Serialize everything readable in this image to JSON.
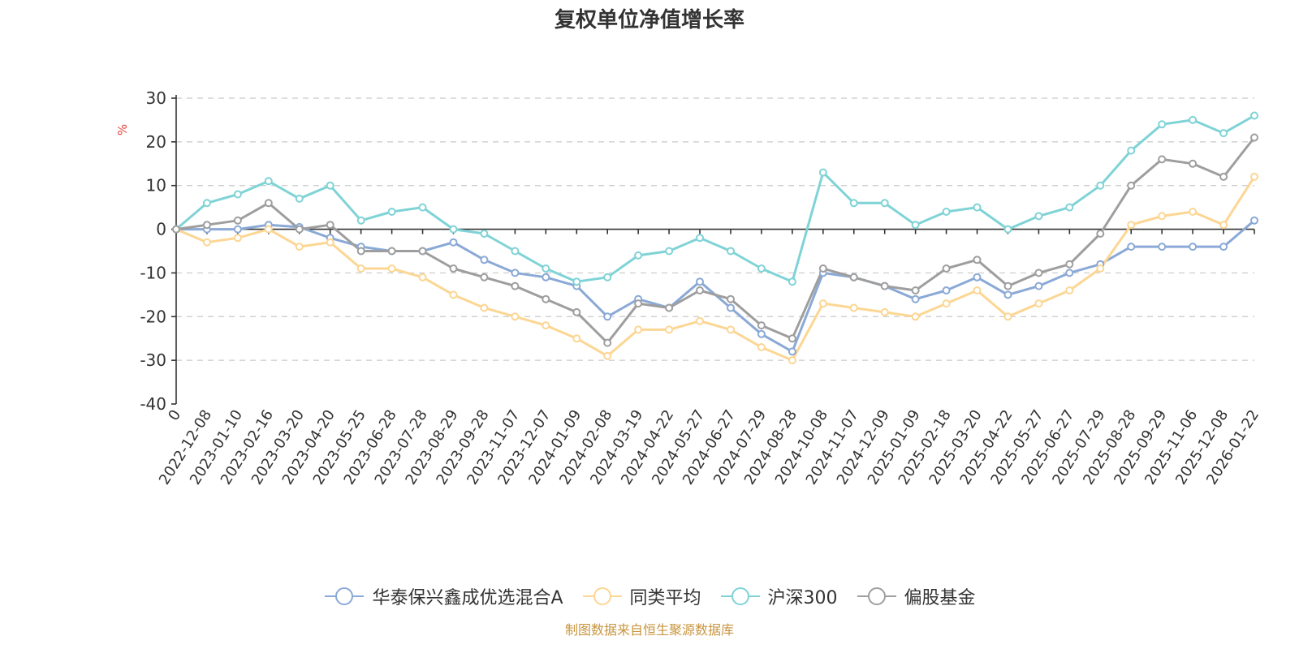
{
  "chart_data": {
    "type": "line",
    "title": "复权单位净值增长率",
    "ylabel": "%",
    "xlabel": "",
    "ylim": [
      -40,
      30
    ],
    "yticks": [
      30,
      20,
      10,
      0,
      -10,
      -20,
      -30,
      -40
    ],
    "grid": true,
    "legend_position": "bottom",
    "categories": [
      "0",
      "2022-12-08",
      "2023-01-10",
      "2023-02-16",
      "2023-03-20",
      "2023-04-20",
      "2023-05-25",
      "2023-06-28",
      "2023-07-28",
      "2023-08-29",
      "2023-09-28",
      "2023-11-07",
      "2023-12-07",
      "2024-01-09",
      "2024-02-08",
      "2024-03-19",
      "2024-04-22",
      "2024-05-27",
      "2024-06-27",
      "2024-07-29",
      "2024-08-28",
      "2024-10-08",
      "2024-11-07",
      "2024-12-09",
      "2025-01-09",
      "2025-02-18",
      "2025-03-20",
      "2025-04-22",
      "2025-05-27",
      "2025-06-27",
      "2025-07-29",
      "2025-08-28",
      "2025-09-29",
      "2025-11-06",
      "2025-12-08",
      "2026-01-22"
    ],
    "series": [
      {
        "name": "华泰保兴鑫成优选混合A",
        "color": "#8aa9d6",
        "values": [
          0,
          0,
          0,
          1,
          0.5,
          -2,
          -4,
          -5,
          -5,
          -3,
          -7,
          -10,
          -11,
          -13,
          -20,
          -16,
          -18,
          -12,
          -18,
          -24,
          -28,
          -10,
          -11,
          -13,
          -16,
          -14,
          -11,
          -15,
          -13,
          -10,
          -8,
          -4,
          -4,
          -4,
          -4,
          2
        ]
      },
      {
        "name": "同类平均",
        "color": "#fcd693",
        "values": [
          0,
          -3,
          -2,
          0,
          -4,
          -3,
          -9,
          -9,
          -11,
          -15,
          -18,
          -20,
          -22,
          -25,
          -29,
          -23,
          -23,
          -21,
          -23,
          -27,
          -30,
          -17,
          -18,
          -19,
          -20,
          -17,
          -14,
          -20,
          -17,
          -14,
          -9,
          1,
          3,
          4,
          1,
          12
        ]
      },
      {
        "name": "沪深300",
        "color": "#7fd3d6",
        "values": [
          0,
          6,
          8,
          11,
          7,
          10,
          2,
          4,
          5,
          0,
          -1,
          -5,
          -9,
          -12,
          -11,
          -6,
          -5,
          -2,
          -5,
          -9,
          -12,
          13,
          6,
          6,
          1,
          4,
          5,
          0,
          3,
          5,
          10,
          18,
          24,
          25,
          22,
          26
        ]
      },
      {
        "name": "偏股基金",
        "color": "#9e9e9e",
        "values": [
          0,
          1,
          2,
          6,
          0,
          1,
          -5,
          -5,
          -5,
          -9,
          -11,
          -13,
          -16,
          -19,
          -26,
          -17,
          -18,
          -14,
          -16,
          -22,
          -25,
          -9,
          -11,
          -13,
          -14,
          -9,
          -7,
          -13,
          -10,
          -8,
          -1,
          10,
          16,
          15,
          12,
          21
        ]
      }
    ]
  },
  "source_note": "制图数据来自恒生聚源数据库"
}
